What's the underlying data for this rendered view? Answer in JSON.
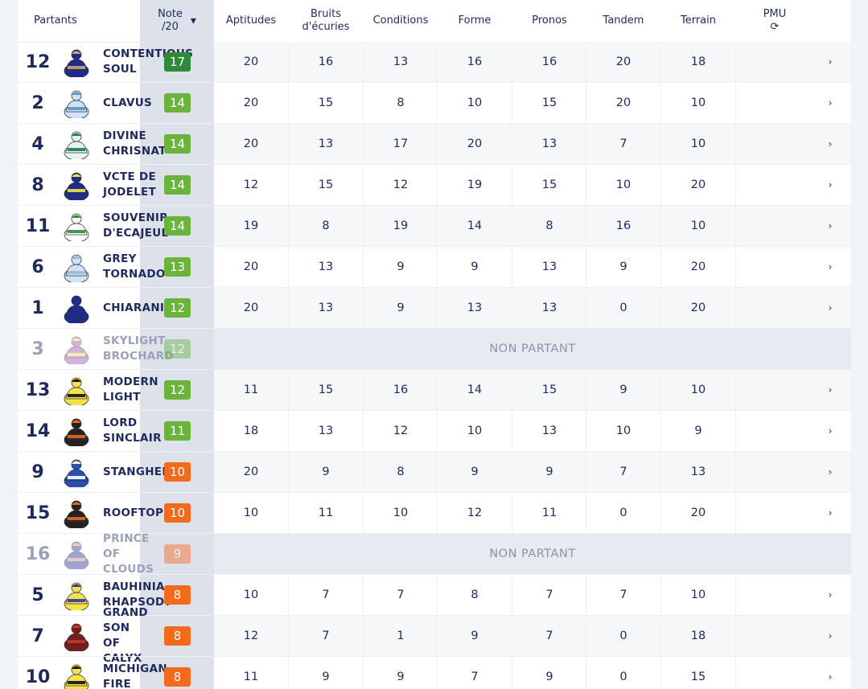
{
  "header": {
    "partants": "Partants",
    "note_line1": "Note",
    "note_line2": "/20",
    "note_arrow": "▾",
    "columns": [
      {
        "l1": "Aptitudes",
        "l2": ""
      },
      {
        "l1": "Bruits",
        "l2": "d'écuries"
      },
      {
        "l1": "Conditions",
        "l2": ""
      },
      {
        "l1": "Forme",
        "l2": ""
      },
      {
        "l1": "Pronos",
        "l2": ""
      },
      {
        "l1": "Tandem",
        "l2": ""
      },
      {
        "l1": "Terrain",
        "l2": ""
      },
      {
        "l1": "PMU",
        "l2": "⟳"
      }
    ]
  },
  "non_partant_label": "NON PARTANT",
  "colors": {
    "note_dark_green": "#2f8a3c",
    "note_green": "#6ab33d",
    "note_orange": "#f26a1b",
    "text": "#1f2a5c"
  },
  "rows": [
    {
      "num": "12",
      "name": [
        "CONTENTIOUS",
        "SOUL"
      ],
      "note": "17",
      "note_color": "#2f8a3c",
      "silk": [
        "#1e2a8c",
        "#c9a27a"
      ],
      "np": false,
      "values": [
        "20",
        "16",
        "13",
        "16",
        "16",
        "20",
        "18"
      ],
      "chev": "›"
    },
    {
      "num": "2",
      "name": [
        "CLAVUS"
      ],
      "note": "14",
      "note_color": "#6ab33d",
      "silk": [
        "#cfe3f7",
        "#5d8fc8"
      ],
      "np": false,
      "values": [
        "20",
        "15",
        "8",
        "10",
        "15",
        "20",
        "10"
      ],
      "chev": "›"
    },
    {
      "num": "4",
      "name": [
        "DIVINE",
        "CHRISNAT"
      ],
      "note": "14",
      "note_color": "#6ab33d",
      "silk": [
        "#e9f3ee",
        "#1f7a55"
      ],
      "np": false,
      "values": [
        "20",
        "13",
        "17",
        "20",
        "13",
        "7",
        "10"
      ],
      "chev": "›"
    },
    {
      "num": "8",
      "name": [
        "VCTE DE",
        "JODELET"
      ],
      "note": "14",
      "note_color": "#6ab33d",
      "silk": [
        "#1e2a8c",
        "#f5e24a"
      ],
      "np": false,
      "values": [
        "12",
        "15",
        "12",
        "19",
        "15",
        "10",
        "20"
      ],
      "chev": "›"
    },
    {
      "num": "11",
      "name": [
        "SOUVENIR",
        "D'ECAJEUL"
      ],
      "note": "14",
      "note_color": "#6ab33d",
      "silk": [
        "#ffffff",
        "#2f8a3c"
      ],
      "np": false,
      "values": [
        "19",
        "8",
        "19",
        "14",
        "8",
        "16",
        "10"
      ],
      "chev": "›"
    },
    {
      "num": "6",
      "name": [
        "GREY",
        "TORNADO"
      ],
      "note": "13",
      "note_color": "#6ab33d",
      "silk": [
        "#cfe3f7",
        "#9bb7d8"
      ],
      "np": false,
      "values": [
        "20",
        "13",
        "9",
        "9",
        "13",
        "9",
        "20"
      ],
      "chev": "›"
    },
    {
      "num": "1",
      "name": [
        "CHIARANIV"
      ],
      "note": "12",
      "note_color": "#6ab33d",
      "silk": [
        "#1e2a8c",
        "#1e2a8c"
      ],
      "np": false,
      "values": [
        "20",
        "13",
        "9",
        "13",
        "13",
        "0",
        "20"
      ],
      "chev": "›"
    },
    {
      "num": "3",
      "name": [
        "SKYLIGHT",
        "BROCHARD"
      ],
      "note": "12",
      "note_color": "#6ab33d",
      "silk": [
        "#9b59b6",
        "#f5e24a"
      ],
      "np": true,
      "values": [],
      "chev": ""
    },
    {
      "num": "13",
      "name": [
        "MODERN",
        "LIGHT"
      ],
      "note": "12",
      "note_color": "#6ab33d",
      "silk": [
        "#f5e24a",
        "#111111"
      ],
      "np": false,
      "values": [
        "11",
        "15",
        "16",
        "14",
        "15",
        "9",
        "10"
      ],
      "chev": "›"
    },
    {
      "num": "14",
      "name": [
        "LORD",
        "SINCLAIR"
      ],
      "note": "11",
      "note_color": "#6ab33d",
      "silk": [
        "#222222",
        "#e46a1f"
      ],
      "np": false,
      "values": [
        "18",
        "13",
        "12",
        "10",
        "13",
        "10",
        "9"
      ],
      "chev": "›"
    },
    {
      "num": "9",
      "name": [
        "STANGHEL"
      ],
      "note": "10",
      "note_color": "#f26a1b",
      "silk": [
        "#2a4fb4",
        "#ffffff"
      ],
      "np": false,
      "values": [
        "20",
        "9",
        "8",
        "9",
        "9",
        "7",
        "13"
      ],
      "chev": "›"
    },
    {
      "num": "15",
      "name": [
        "ROOFTOP"
      ],
      "note": "10",
      "note_color": "#f26a1b",
      "silk": [
        "#222222",
        "#e46a1f"
      ],
      "np": false,
      "values": [
        "10",
        "11",
        "10",
        "12",
        "11",
        "0",
        "20"
      ],
      "chev": "›"
    },
    {
      "num": "16",
      "name": [
        "PRINCE",
        "OF",
        "CLOUDS"
      ],
      "note": "9",
      "note_color": "#f26a1b",
      "silk": [
        "#2a3aa0",
        "#c9a27a"
      ],
      "np": true,
      "values": [],
      "chev": ""
    },
    {
      "num": "5",
      "name": [
        "BAUHINIA",
        "RHAPSODY"
      ],
      "note": "8",
      "note_color": "#f26a1b",
      "silk": [
        "#f5e24a",
        "#2a3aa0"
      ],
      "np": false,
      "values": [
        "10",
        "7",
        "7",
        "8",
        "7",
        "7",
        "10"
      ],
      "chev": "›"
    },
    {
      "num": "7",
      "name": [
        "GRAND",
        "SON",
        "OF",
        "CALYX"
      ],
      "note": "8",
      "note_color": "#f26a1b",
      "silk": [
        "#7a1c1c",
        "#c0392b"
      ],
      "np": false,
      "values": [
        "12",
        "7",
        "1",
        "9",
        "7",
        "0",
        "18"
      ],
      "chev": "›"
    },
    {
      "num": "10",
      "name": [
        "MICHIGAN",
        "FIRE"
      ],
      "note": "8",
      "note_color": "#f26a1b",
      "silk": [
        "#f5e24a",
        "#111111"
      ],
      "np": false,
      "values": [
        "11",
        "9",
        "9",
        "7",
        "9",
        "0",
        "15"
      ],
      "chev": "›"
    }
  ]
}
